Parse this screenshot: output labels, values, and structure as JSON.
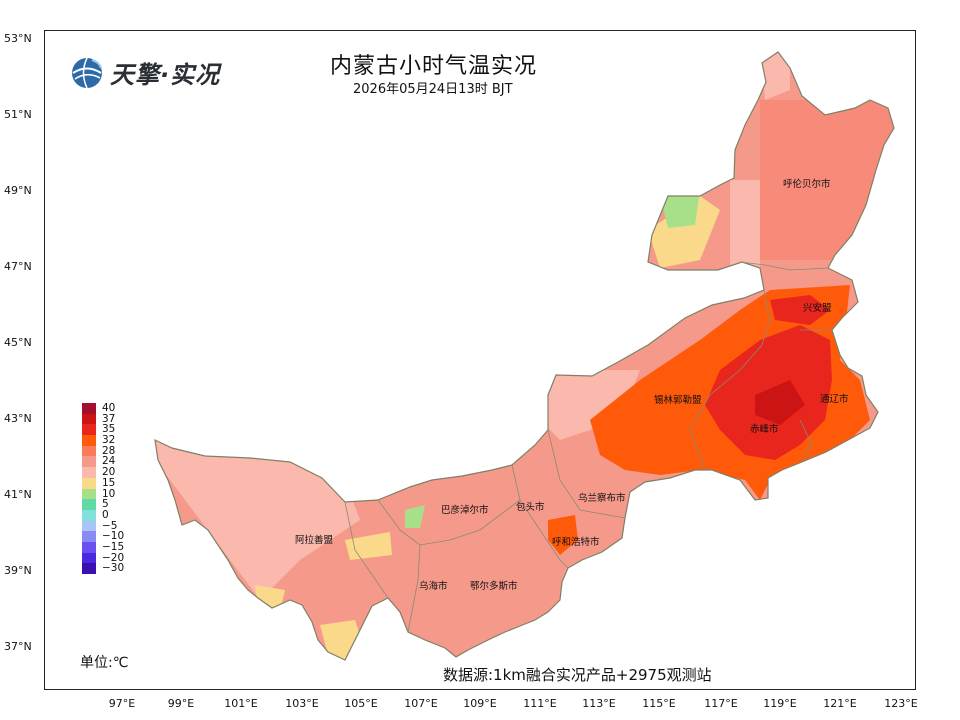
{
  "header": {
    "title": "内蒙古小时气温实况",
    "subtitle": "2026年05月24日13时 BJT",
    "logo_text": "天擎·实况"
  },
  "axes": {
    "lat_ticks": [
      "53°N",
      "51°N",
      "49°N",
      "47°N",
      "45°N",
      "43°N",
      "41°N",
      "39°N",
      "37°N"
    ],
    "lon_ticks": [
      "97°E",
      "99°E",
      "101°E",
      "103°E",
      "105°E",
      "107°E",
      "109°E",
      "111°E",
      "113°E",
      "115°E",
      "117°E",
      "119°E",
      "121°E",
      "123°E"
    ]
  },
  "legend": {
    "items": [
      {
        "label": "40",
        "color": "#a50f2d"
      },
      {
        "label": "37",
        "color": "#cc1414"
      },
      {
        "label": "35",
        "color": "#e8261e"
      },
      {
        "label": "32",
        "color": "#ff5a0a"
      },
      {
        "label": "28",
        "color": "#fa7a5c"
      },
      {
        "label": "24",
        "color": "#f59a8a"
      },
      {
        "label": "20",
        "color": "#fbb8ac"
      },
      {
        "label": "15",
        "color": "#fbd98a"
      },
      {
        "label": "10",
        "color": "#a8e08a"
      },
      {
        "label": "5",
        "color": "#5fd9a8"
      },
      {
        "label": "0",
        "color": "#7fe0dc"
      },
      {
        "label": "−5",
        "color": "#a7c6f5"
      },
      {
        "label": "−10",
        "color": "#8a8af5"
      },
      {
        "label": "−15",
        "color": "#6a4ef0"
      },
      {
        "label": "−20",
        "color": "#4a2ae0"
      },
      {
        "label": "−30",
        "color": "#3a10b0"
      }
    ],
    "unit": "单位:℃"
  },
  "source": "数据源:1km融合实况产品+2975观测站",
  "cities": [
    {
      "name": "呼伦贝尔市"
    },
    {
      "name": "兴安盟"
    },
    {
      "name": "锡林郭勒盟"
    },
    {
      "name": "通辽市"
    },
    {
      "name": "赤峰市"
    },
    {
      "name": "乌兰察布市"
    },
    {
      "name": "包头市"
    },
    {
      "name": "巴彦淖尔市"
    },
    {
      "name": "呼和浩特市"
    },
    {
      "name": "阿拉善盟"
    },
    {
      "name": "乌海市"
    },
    {
      "name": "鄂尔多斯市"
    }
  ],
  "colors": {
    "region_base": "#f59a8a",
    "hot_core": "#e8261e",
    "hot_ring": "#ff5a0a",
    "cool_patch": "#fbd98a",
    "cold_patch": "#a8e08a",
    "border": "#8a8a70"
  }
}
